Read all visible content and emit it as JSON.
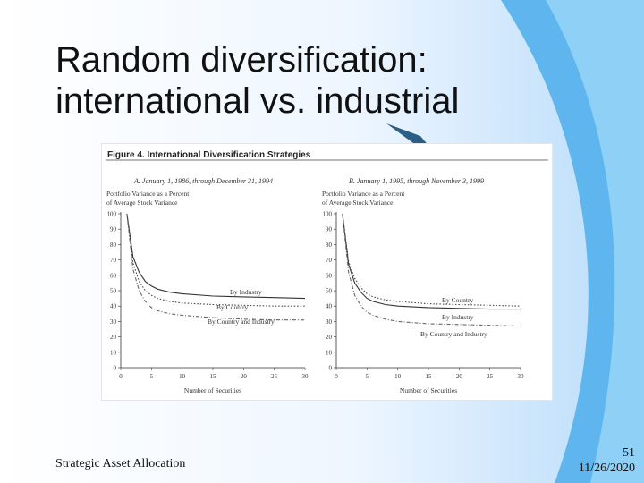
{
  "slide": {
    "title_line1": "Random diversification:",
    "title_line2": "international vs. industrial",
    "footer_left": "Strategic Asset Allocation",
    "page_number": "51",
    "date": "11/26/2020"
  },
  "figure": {
    "caption": "Figure 4.  International Diversification Strategies"
  },
  "chart_data": [
    {
      "type": "line",
      "title": "A. January 1, 1986, through December 31, 1994",
      "ylabel": "Portfolio Variance as a Percent of Average Stock Variance",
      "ylabel_lines": [
        "Portfolio Variance as a Percent",
        "of Average Stock Variance"
      ],
      "xlabel": "Number of Securities",
      "xlim": [
        0,
        30
      ],
      "ylim": [
        0,
        100
      ],
      "xticks": [
        "0",
        "5",
        "10",
        "15",
        "20",
        "25",
        "30"
      ],
      "yticks": [
        "0",
        "10",
        "20",
        "30",
        "40",
        "50",
        "60",
        "70",
        "80",
        "90",
        "100"
      ],
      "x": [
        1,
        2,
        3,
        4,
        5,
        6,
        8,
        10,
        15,
        20,
        25,
        30
      ],
      "series": [
        {
          "name": "By Industry",
          "style": "solid",
          "values": [
            100,
            72,
            62,
            56,
            53,
            51,
            49,
            48,
            46.5,
            46,
            45.5,
            45
          ]
        },
        {
          "name": "By Country",
          "style": "dotted",
          "values": [
            100,
            68,
            56,
            50,
            47,
            45,
            43,
            42,
            41,
            40.5,
            40,
            40
          ]
        },
        {
          "name": "By Country and Industry",
          "style": "dashdot",
          "values": [
            100,
            64,
            50,
            43,
            39,
            37,
            35,
            34,
            32.5,
            31.5,
            31,
            31
          ]
        }
      ],
      "labels": {
        "industry": "By Industry",
        "country": "By Country",
        "both": "By Country and Industry"
      }
    },
    {
      "type": "line",
      "title": "B. January 1, 1995, through November 3, 1999",
      "ylabel": "Portfolio Variance as a Percent of Average Stock Variance",
      "ylabel_lines": [
        "Portfolio Variance as a Percent",
        "of Average Stock Variance"
      ],
      "xlabel": "Number of Securities",
      "xlim": [
        0,
        30
      ],
      "ylim": [
        0,
        100
      ],
      "xticks": [
        "0",
        "5",
        "10",
        "15",
        "20",
        "25",
        "30"
      ],
      "yticks": [
        "0",
        "10",
        "20",
        "30",
        "40",
        "50",
        "60",
        "70",
        "80",
        "90",
        "100"
      ],
      "x": [
        1,
        2,
        3,
        4,
        5,
        6,
        8,
        10,
        15,
        20,
        25,
        30
      ],
      "series": [
        {
          "name": "By Country",
          "style": "dotted",
          "values": [
            100,
            69,
            58,
            52,
            48,
            46,
            44,
            43,
            41.5,
            41,
            40.5,
            40
          ]
        },
        {
          "name": "By Industry",
          "style": "solid",
          "values": [
            100,
            67,
            55,
            49,
            45,
            43,
            41,
            40,
            39,
            38.5,
            38,
            38
          ]
        },
        {
          "name": "By Country and Industry",
          "style": "dashdot",
          "values": [
            100,
            62,
            47,
            40,
            36,
            34,
            31.5,
            30,
            28.5,
            28,
            27.5,
            27
          ]
        }
      ],
      "labels": {
        "country": "By Country",
        "industry": "By Industry",
        "both": "By Country and Industry"
      }
    }
  ]
}
